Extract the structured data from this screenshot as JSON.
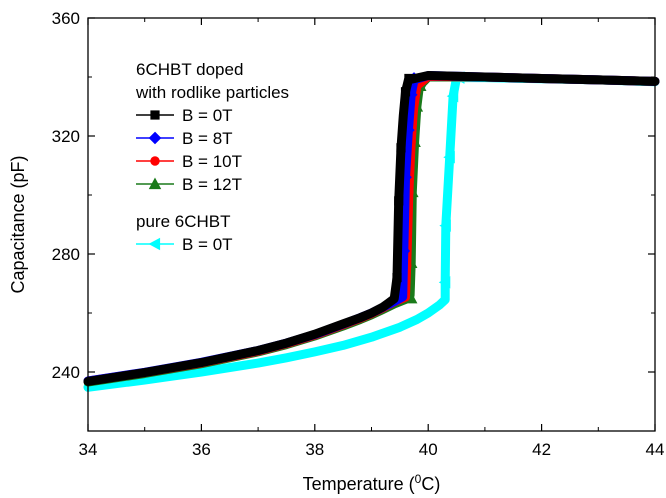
{
  "chart_data": {
    "type": "line",
    "xlabel": "Temperature (",
    "xlabel_sup": "0",
    "xlabel_tail": "C)",
    "ylabel": "Capacitance (pF)",
    "xlim": [
      34,
      44
    ],
    "ylim": [
      220,
      360
    ],
    "xticks": [
      34,
      36,
      38,
      40,
      42,
      44
    ],
    "yticks": [
      240,
      280,
      320,
      360
    ],
    "grid": false,
    "legend_position": "top-left",
    "legend_groups": [
      {
        "title_lines": [
          "6CHBT doped",
          "with rodlike particles"
        ],
        "series_indices": [
          0,
          1,
          2,
          3
        ]
      },
      {
        "title_lines": [
          "pure 6CHBT"
        ],
        "series_indices": [
          4
        ]
      }
    ],
    "series": [
      {
        "name": "B = 0T",
        "color": "#000000",
        "marker": "square",
        "points": [
          [
            34.0,
            236.8
          ],
          [
            35.0,
            239.8
          ],
          [
            36.0,
            243.2
          ],
          [
            37.0,
            247.3
          ],
          [
            37.5,
            249.8
          ],
          [
            38.0,
            252.8
          ],
          [
            38.5,
            256.3
          ],
          [
            38.8,
            258.4
          ],
          [
            39.0,
            260.0
          ],
          [
            39.2,
            262.0
          ],
          [
            39.3,
            263.4
          ],
          [
            39.4,
            264.8
          ],
          [
            39.45,
            272
          ],
          [
            39.48,
            298
          ],
          [
            39.52,
            316
          ],
          [
            39.56,
            327
          ],
          [
            39.6,
            335
          ],
          [
            39.65,
            339
          ],
          [
            40.0,
            340.5
          ],
          [
            41.0,
            340.0
          ],
          [
            42.0,
            339.5
          ],
          [
            43.0,
            339.0
          ],
          [
            44.0,
            338.5
          ]
        ],
        "marker_points": [
          [
            39.45,
            272
          ],
          [
            39.48,
            298
          ],
          [
            39.52,
            316
          ],
          [
            39.6,
            335
          ],
          [
            39.66,
            339.5
          ]
        ]
      },
      {
        "name": "B = 8T",
        "color": "#0000ff",
        "marker": "diamond",
        "points": [
          [
            34.0,
            237.0
          ],
          [
            35.0,
            239.9
          ],
          [
            36.0,
            243.3
          ],
          [
            37.0,
            247.3
          ],
          [
            37.5,
            249.8
          ],
          [
            38.0,
            252.7
          ],
          [
            38.5,
            256.2
          ],
          [
            38.8,
            258.4
          ],
          [
            39.0,
            260.0
          ],
          [
            39.2,
            261.9
          ],
          [
            39.4,
            263.9
          ],
          [
            39.55,
            265.5
          ],
          [
            39.57,
            281
          ],
          [
            39.6,
            306
          ],
          [
            39.65,
            322
          ],
          [
            39.7,
            334
          ],
          [
            39.75,
            339
          ],
          [
            40.0,
            340.5
          ],
          [
            41.0,
            340.0
          ],
          [
            42.0,
            339.5
          ],
          [
            43.0,
            339.0
          ],
          [
            44.0,
            338.5
          ]
        ],
        "marker_points": [
          [
            39.57,
            281
          ],
          [
            39.6,
            306
          ],
          [
            39.65,
            322
          ],
          [
            39.7,
            334
          ],
          [
            39.75,
            339.5
          ]
        ]
      },
      {
        "name": "B = 10T",
        "color": "#ff0000",
        "marker": "circle",
        "points": [
          [
            34.0,
            236.9
          ],
          [
            35.0,
            239.8
          ],
          [
            36.0,
            243.1
          ],
          [
            37.0,
            247.1
          ],
          [
            37.5,
            249.6
          ],
          [
            38.0,
            252.5
          ],
          [
            38.5,
            256.0
          ],
          [
            38.8,
            258.2
          ],
          [
            39.0,
            259.8
          ],
          [
            39.2,
            261.7
          ],
          [
            39.4,
            263.8
          ],
          [
            39.6,
            265.4
          ],
          [
            39.62,
            276
          ],
          [
            39.66,
            301
          ],
          [
            39.7,
            318
          ],
          [
            39.74,
            329
          ],
          [
            39.8,
            337
          ],
          [
            40.0,
            340.2
          ],
          [
            41.0,
            340.0
          ],
          [
            42.0,
            339.5
          ],
          [
            43.0,
            339.0
          ],
          [
            44.0,
            338.5
          ]
        ],
        "marker_points": [
          [
            39.62,
            276
          ],
          [
            39.66,
            301
          ],
          [
            39.7,
            318
          ],
          [
            39.74,
            329
          ],
          [
            39.8,
            337
          ]
        ]
      },
      {
        "name": "B = 12T",
        "color": "#1a7a1a",
        "marker": "triangle",
        "points": [
          [
            34.0,
            236.6
          ],
          [
            35.0,
            239.5
          ],
          [
            36.0,
            242.8
          ],
          [
            37.0,
            246.8
          ],
          [
            37.5,
            249.3
          ],
          [
            38.0,
            252.2
          ],
          [
            38.5,
            255.6
          ],
          [
            38.8,
            257.8
          ],
          [
            39.0,
            259.4
          ],
          [
            39.2,
            261.2
          ],
          [
            39.4,
            263.1
          ],
          [
            39.6,
            264.6
          ],
          [
            39.68,
            266
          ],
          [
            39.7,
            277
          ],
          [
            39.72,
            301
          ],
          [
            39.76,
            318
          ],
          [
            39.8,
            330
          ],
          [
            39.84,
            336
          ],
          [
            39.9,
            338
          ],
          [
            40.0,
            340.0
          ],
          [
            41.0,
            340.0
          ],
          [
            42.0,
            339.5
          ],
          [
            43.0,
            339.0
          ],
          [
            44.0,
            338.5
          ]
        ],
        "marker_points": [
          [
            39.7,
            265
          ],
          [
            39.7,
            277
          ],
          [
            39.72,
            301
          ],
          [
            39.76,
            318
          ],
          [
            39.8,
            330
          ],
          [
            39.86,
            337
          ]
        ]
      },
      {
        "name": "B = 0T",
        "color": "#00ffff",
        "marker": "triangle-left",
        "points": [
          [
            34.0,
            234.8
          ],
          [
            35.0,
            237.3
          ],
          [
            36.0,
            240.0
          ],
          [
            37.0,
            243.0
          ],
          [
            37.5,
            244.8
          ],
          [
            38.0,
            246.8
          ],
          [
            38.5,
            249.0
          ],
          [
            39.0,
            251.8
          ],
          [
            39.5,
            255.2
          ],
          [
            39.8,
            257.8
          ],
          [
            40.0,
            260.0
          ],
          [
            40.2,
            262.7
          ],
          [
            40.3,
            264.5
          ],
          [
            40.3,
            270.4
          ],
          [
            40.31,
            289.6
          ],
          [
            40.38,
            312.8
          ],
          [
            40.44,
            333.5
          ],
          [
            40.5,
            339.8
          ],
          [
            41.0,
            339.8
          ],
          [
            42.0,
            339.4
          ],
          [
            43.0,
            339.0
          ],
          [
            44.0,
            338.4
          ]
        ],
        "marker_points": [
          [
            40.3,
            270.4
          ],
          [
            40.31,
            289.6
          ],
          [
            40.38,
            312.8
          ],
          [
            40.44,
            333.5
          ],
          [
            40.55,
            339.8
          ]
        ]
      }
    ]
  }
}
